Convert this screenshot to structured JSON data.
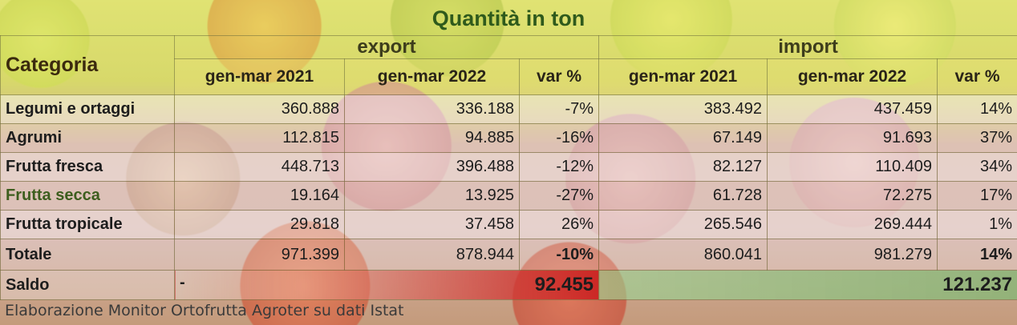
{
  "title": "Quantità in ton",
  "header": {
    "categoria": "Categoria",
    "export": "export",
    "import": "import",
    "cols": [
      "gen-mar 2021",
      "gen-mar 2022",
      "var %",
      "gen-mar 2021",
      "gen-mar 2022",
      "var %"
    ]
  },
  "rows": [
    {
      "cat": "Legumi e ortaggi",
      "exp2021": "360.888",
      "exp2022": "336.188",
      "expvar": "-7%",
      "imp2021": "383.492",
      "imp2022": "437.459",
      "impvar": "14%"
    },
    {
      "cat": "Agrumi",
      "exp2021": "112.815",
      "exp2022": "94.885",
      "expvar": "-16%",
      "imp2021": "67.149",
      "imp2022": "91.693",
      "impvar": "37%"
    },
    {
      "cat": "Frutta fresca",
      "exp2021": "448.713",
      "exp2022": "396.488",
      "expvar": "-12%",
      "imp2021": "82.127",
      "imp2022": "110.409",
      "impvar": "34%"
    },
    {
      "cat": "Frutta secca",
      "exp2021": "19.164",
      "exp2022": "13.925",
      "expvar": "-27%",
      "imp2021": "61.728",
      "imp2022": "72.275",
      "impvar": "17%"
    },
    {
      "cat": "Frutta tropicale",
      "exp2021": "29.818",
      "exp2022": "37.458",
      "expvar": "26%",
      "imp2021": "265.546",
      "imp2022": "269.444",
      "impvar": "1%"
    }
  ],
  "totale": {
    "cat": "Totale",
    "exp2021": "971.399",
    "exp2022": "878.944",
    "expvar": "-10%",
    "imp2021": "860.041",
    "imp2022": "981.279",
    "impvar": "14%"
  },
  "saldo": {
    "cat": "Saldo",
    "exp_sign": "-",
    "exp_value": "92.455",
    "imp_value": "121.237"
  },
  "source": "Elaborazione Monitor Ortofrutta Agroter su dati Istat",
  "colors": {
    "title": "#2f5a1c",
    "negative": "#c81e14",
    "positive": "#3c9646"
  }
}
